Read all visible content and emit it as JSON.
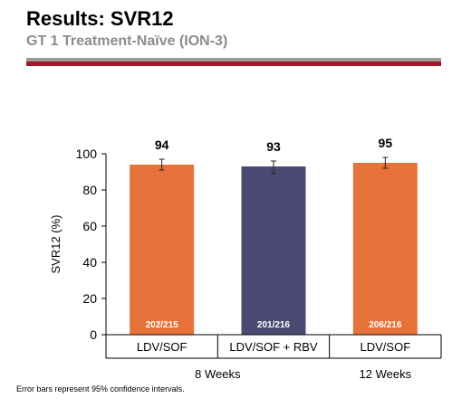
{
  "header": {
    "title": "Results: SVR12",
    "subtitle": "GT 1 Treatment-Naïve (ION-3)"
  },
  "footnote": "Error bars represent 95% confidence intervals.",
  "chart_data": {
    "type": "bar",
    "ylabel": "SVR12 (%)",
    "ylim": [
      0,
      100
    ],
    "yticks": [
      0,
      20,
      40,
      60,
      80,
      100
    ],
    "grid": false,
    "categories": [
      "LDV/SOF",
      "LDV/SOF + RBV",
      "LDV/SOF"
    ],
    "values": [
      94,
      93,
      95
    ],
    "error_low": [
      91,
      89,
      92
    ],
    "error_high": [
      97,
      96,
      98
    ],
    "value_labels": [
      "94",
      "93",
      "95"
    ],
    "count_labels": [
      "202/215",
      "201/216",
      "206/216"
    ],
    "bar_colors": [
      "#e8733a",
      "#4a4a72",
      "#e8733a"
    ],
    "groups": [
      {
        "label": "8 Weeks",
        "categories": [
          0,
          1
        ]
      },
      {
        "label": "12 Weeks",
        "categories": [
          2
        ]
      }
    ]
  }
}
